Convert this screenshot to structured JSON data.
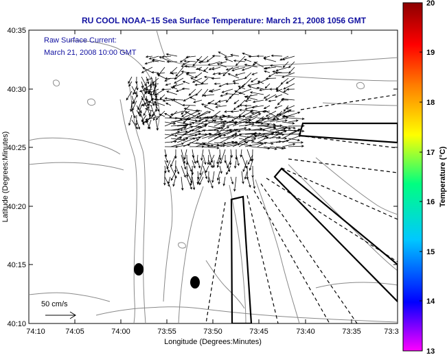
{
  "title": "RU COOL  NOAA−15  Sea Surface Temperature:  March 21, 2008 1056 GMT",
  "annotation": {
    "line1": "Raw Surface Current:",
    "line2": "March 21, 2008 10:00 GMT"
  },
  "scale": {
    "label": "50 cm/s"
  },
  "x_axis": {
    "label": "Longitude (Degrees:Minutes)",
    "ticks": [
      "74:10",
      "74:05",
      "74:00",
      "73:55",
      "73:50",
      "73:45",
      "73:40",
      "73:35",
      "73:3"
    ]
  },
  "y_axis": {
    "label": "Latitude (Degrees:Minutes)",
    "ticks": [
      "40:35",
      "40:30",
      "40:25",
      "40:20",
      "40:15",
      "40:10"
    ]
  },
  "colorbar": {
    "label": "Temperature (°C)",
    "ticks": [
      "20",
      "19",
      "18",
      "17",
      "16",
      "15",
      "14",
      "13"
    ],
    "stops": [
      "#ff00ff",
      "#0000ff",
      "#00c8ff",
      "#00ff80",
      "#ffff00",
      "#ff8000",
      "#ff0000",
      "#8b0000"
    ]
  },
  "colors": {
    "title": "#1010a0",
    "contour": "#888888",
    "vectors": "#000000"
  }
}
